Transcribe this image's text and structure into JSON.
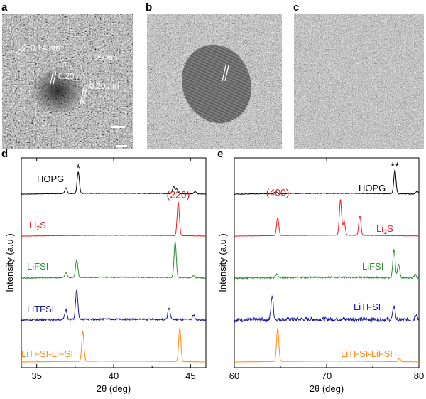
{
  "panels": {
    "a": {
      "letter": "a",
      "spacing_label": "0.20 nm"
    },
    "b": {
      "letter": "b",
      "spacing_label": "0.29 nm"
    },
    "c": {
      "letter": "c",
      "spacing_label_1": "0.14 nm",
      "spacing_label_2": "0.20 nm"
    },
    "d": {
      "letter": "d"
    },
    "e": {
      "letter": "e"
    }
  },
  "chart_data": [
    {
      "type": "line",
      "panel": "d",
      "xlabel": "2θ (deg)",
      "ylabel": "Intensity (a.u.)",
      "xlim": [
        34,
        46
      ],
      "xticks": [
        35,
        40,
        45
      ],
      "series": [
        {
          "name": "HOPG",
          "color": "#000000",
          "peaks": [
            [
              36.9,
              0.15
            ],
            [
              37.7,
              0.55
            ],
            [
              43.9,
              0.18
            ],
            [
              44.1,
              0.12
            ],
            [
              45.3,
              0.06
            ]
          ],
          "annotation": "*",
          "annotation_x": 37.7
        },
        {
          "name": "Li2S",
          "color": "#e8202a",
          "peaks": [
            [
              44.2,
              0.85
            ]
          ],
          "annotation": "(220)",
          "annotation_x": 44.2
        },
        {
          "name": "LiFSI",
          "color": "#2e8b2e",
          "peaks": [
            [
              36.9,
              0.12
            ],
            [
              37.6,
              0.45
            ],
            [
              44.0,
              0.9
            ],
            [
              45.2,
              0.05
            ]
          ]
        },
        {
          "name": "LiTFSI",
          "color": "#1a1a9a",
          "peaks": [
            [
              36.9,
              0.25
            ],
            [
              37.6,
              0.75
            ],
            [
              43.6,
              0.3
            ],
            [
              45.2,
              0.12
            ]
          ]
        },
        {
          "name": "LiTFSI-LiFSI",
          "color": "#ff8c1a",
          "peaks": [
            [
              38.0,
              0.75
            ],
            [
              44.3,
              0.85
            ]
          ]
        }
      ]
    },
    {
      "type": "line",
      "panel": "e",
      "xlabel": "2θ (deg)",
      "ylabel": "Intensity (a.u.)",
      "xlim": [
        60,
        80
      ],
      "xticks": [
        60,
        70,
        80
      ],
      "series": [
        {
          "name": "HOPG",
          "color": "#000000",
          "peaks": [
            [
              64.5,
              0.05
            ],
            [
              77.4,
              0.6
            ],
            [
              79.8,
              0.08
            ]
          ],
          "annotation": "**",
          "annotation_x": 77.4
        },
        {
          "name": "Li2S",
          "color": "#e8202a",
          "peaks": [
            [
              64.7,
              0.45
            ],
            [
              71.5,
              0.9
            ],
            [
              71.9,
              0.35
            ],
            [
              73.6,
              0.5
            ]
          ],
          "annotation": "(400)",
          "annotation_x": 64.7
        },
        {
          "name": "LiFSI",
          "color": "#2e8b2e",
          "peaks": [
            [
              64.6,
              0.08
            ],
            [
              77.3,
              0.7
            ],
            [
              77.8,
              0.35
            ],
            [
              79.6,
              0.1
            ]
          ]
        },
        {
          "name": "LiTFSI",
          "color": "#1a1a9a",
          "peaks": [
            [
              64.1,
              0.6
            ],
            [
              77.3,
              0.35
            ],
            [
              79.7,
              0.15
            ]
          ]
        },
        {
          "name": "LiTFSI-LiFSI",
          "color": "#ff8c1a",
          "peaks": [
            [
              64.7,
              0.85
            ],
            [
              77.9,
              0.08
            ]
          ]
        }
      ]
    }
  ]
}
